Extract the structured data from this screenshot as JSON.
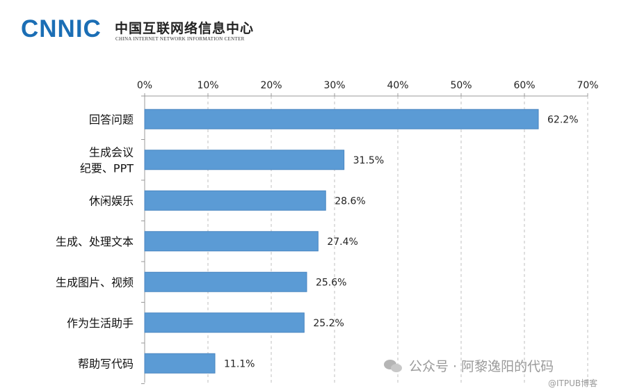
{
  "header": {
    "logo_mark": "CNNIC",
    "logo_cn": "中国互联网络信息中心",
    "logo_en": "CHINA INTERNET NETWORK INFORMATION CENTER"
  },
  "watermark": {
    "icon": "wechat-icon",
    "text": "公众号 · 阿黎逸阳的代码",
    "sub_text": "@ITPUB博客"
  },
  "colors": {
    "bar": "#5B9BD5",
    "bar_edge": "#4A86C0",
    "axis": "#999999",
    "grid": "#bfbfbf"
  },
  "chart_data": {
    "type": "bar",
    "orientation": "horizontal",
    "categories": [
      "回答问题",
      "生成会议\n纪要、PPT",
      "休闲娱乐",
      "生成、处理文本",
      "生成图片、视频",
      "作为生活助手",
      "帮助写代码"
    ],
    "values": [
      62.2,
      31.5,
      28.6,
      27.4,
      25.6,
      25.2,
      11.1
    ],
    "value_labels": [
      "62.2%",
      "31.5%",
      "28.6%",
      "27.4%",
      "25.6%",
      "25.2%",
      "11.1%"
    ],
    "xlim": [
      0,
      70
    ],
    "xticks": [
      "0%",
      "10%",
      "20%",
      "30%",
      "40%",
      "50%",
      "60%",
      "70%"
    ],
    "axis_position": "top",
    "grid": "vertical-dashed",
    "title": "",
    "xlabel": "",
    "ylabel": ""
  }
}
